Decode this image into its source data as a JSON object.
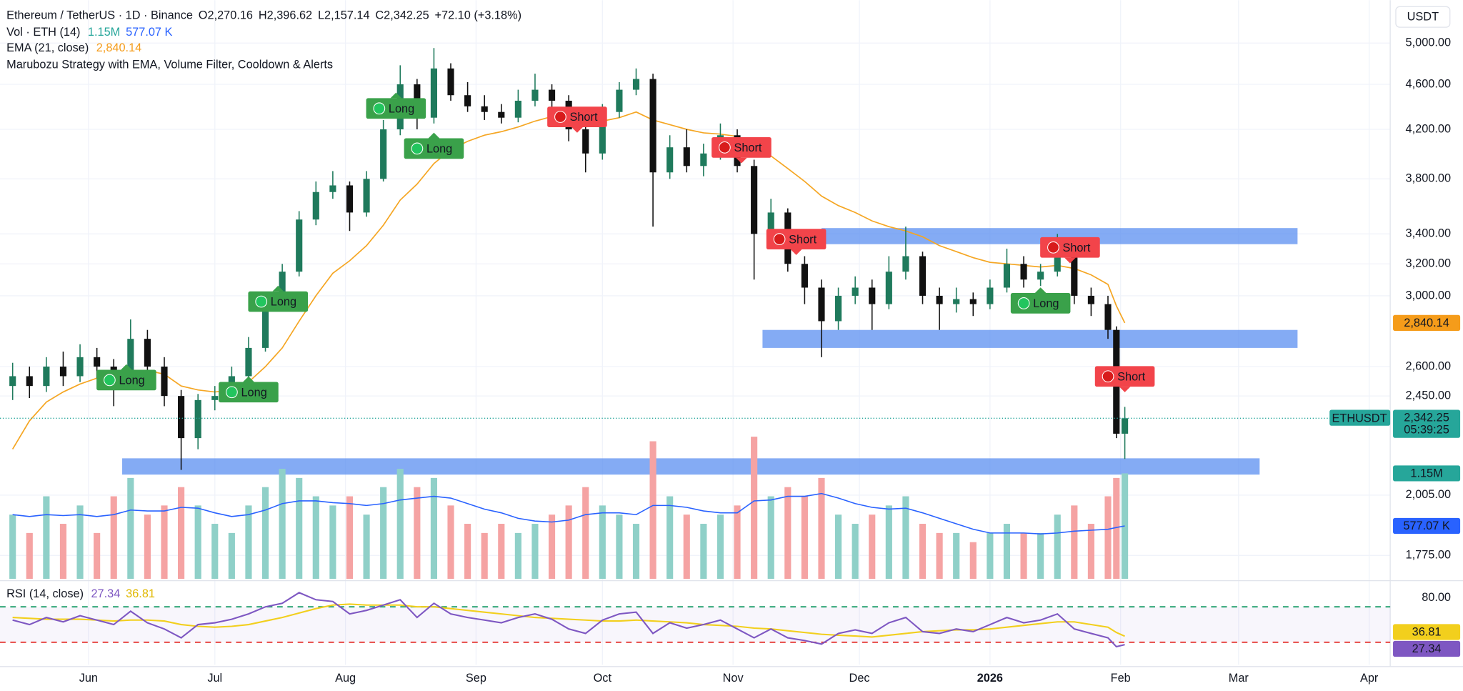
{
  "header": {
    "symbol": "Ethereum / TetherUS · 1D · Binance",
    "ohlc": [
      {
        "key": "O",
        "value": "2,270.16"
      },
      {
        "key": "H",
        "value": "2,396.62"
      },
      {
        "key": "L",
        "value": "2,157.14"
      },
      {
        "key": "C",
        "value": "2,342.25"
      }
    ],
    "change": "+72.10 (+3.18%)",
    "currency": "USDT"
  },
  "chart_data": {
    "type": "candlestick",
    "x": [
      3,
      7,
      11,
      15,
      19,
      23,
      27,
      31,
      35,
      39,
      43,
      47,
      51,
      55,
      59,
      63,
      67,
      71,
      75,
      79,
      83,
      87,
      91,
      95,
      99,
      103,
      107,
      111,
      115,
      119,
      123,
      127,
      131,
      135,
      139,
      143,
      147,
      151,
      155,
      159,
      163,
      167,
      171,
      175,
      179,
      183,
      187,
      191,
      195,
      199,
      203,
      207,
      211,
      215,
      219,
      223,
      227,
      231,
      235,
      239,
      243,
      247,
      251,
      255,
      259,
      263,
      265,
      267
    ],
    "open": [
      2500,
      2550,
      2500,
      2600,
      2550,
      2650,
      2600,
      2550,
      2750,
      2600,
      2450,
      2250,
      2430,
      2450,
      2550,
      2700,
      2980,
      3150,
      3500,
      3700,
      3750,
      3550,
      3800,
      4200,
      4600,
      4300,
      4750,
      4500,
      4400,
      4350,
      4300,
      4450,
      4550,
      4450,
      4200,
      4000,
      4350,
      4550,
      4650,
      3850,
      4050,
      3900,
      4000,
      4150,
      3900,
      3400,
      3550,
      3200,
      3050,
      2850,
      3000,
      3050,
      2950,
      3150,
      3250,
      3000,
      2950,
      2980,
      2950,
      3050,
      3200,
      3100,
      3150,
      3300,
      3000,
      2950,
      2800,
      2270.16
    ],
    "high": [
      2620,
      2600,
      2650,
      2680,
      2720,
      2700,
      2640,
      2860,
      2800,
      2650,
      2480,
      2460,
      2500,
      2600,
      2760,
      3020,
      3200,
      3560,
      3780,
      3860,
      3780,
      3860,
      4280,
      4780,
      4650,
      4950,
      4800,
      4620,
      4500,
      4420,
      4550,
      4700,
      4600,
      4500,
      4250,
      4420,
      4620,
      4750,
      4700,
      4150,
      4200,
      4080,
      4250,
      4200,
      3950,
      3650,
      3580,
      3250,
      3100,
      3050,
      3120,
      3100,
      3250,
      3450,
      3280,
      3050,
      3050,
      3020,
      3100,
      3300,
      3250,
      3200,
      3400,
      3320,
      3050,
      3000,
      2820,
      2396.62
    ],
    "low": [
      2430,
      2440,
      2470,
      2500,
      2520,
      2540,
      2400,
      2520,
      2540,
      2400,
      2110,
      2200,
      2380,
      2420,
      2520,
      2680,
      2940,
      3120,
      3460,
      3650,
      3420,
      3520,
      3780,
      4150,
      4200,
      4250,
      4450,
      4350,
      4280,
      4250,
      4260,
      4400,
      4380,
      4100,
      3850,
      3950,
      4300,
      4500,
      3450,
      3800,
      3850,
      3820,
      3950,
      3850,
      3100,
      3350,
      3150,
      2950,
      2650,
      2800,
      2950,
      2800,
      2920,
      3100,
      2950,
      2800,
      2900,
      2880,
      2920,
      3020,
      3050,
      3060,
      3120,
      2950,
      2880,
      2750,
      2250,
      2157.14
    ],
    "close": [
      2550,
      2500,
      2600,
      2550,
      2650,
      2600,
      2550,
      2750,
      2600,
      2450,
      2250,
      2430,
      2450,
      2550,
      2700,
      2980,
      3150,
      3500,
      3700,
      3750,
      3550,
      3800,
      4200,
      4600,
      4300,
      4750,
      4500,
      4400,
      4350,
      4300,
      4450,
      4550,
      4450,
      4200,
      4000,
      4350,
      4550,
      4650,
      3850,
      4050,
      3900,
      4000,
      4150,
      3900,
      3400,
      3550,
      3200,
      3050,
      2850,
      3000,
      3050,
      2950,
      3150,
      3250,
      3000,
      2950,
      2980,
      2950,
      3050,
      3200,
      3100,
      3150,
      3300,
      3000,
      2950,
      2800,
      2270.16,
      2342.25
    ],
    "up_color": "#1f7a5c",
    "down_color": "#111111",
    "xlim": [
      0,
      330
    ],
    "xticks": [
      {
        "value": 21,
        "label": "Jun"
      },
      {
        "value": 51,
        "label": "Jul"
      },
      {
        "value": 82,
        "label": "Aug"
      },
      {
        "value": 113,
        "label": "Sep"
      },
      {
        "value": 143,
        "label": "Oct"
      },
      {
        "value": 174,
        "label": "Nov"
      },
      {
        "value": 204,
        "label": "Dec"
      },
      {
        "value": 235,
        "label": "2026"
      },
      {
        "value": 266,
        "label": "Feb"
      },
      {
        "value": 294,
        "label": "Mar"
      },
      {
        "value": 325,
        "label": "Apr"
      }
    ],
    "ylim": [
      1693,
      5453
    ],
    "log": true,
    "grid": true,
    "yticks": [
      {
        "value": 5000,
        "label": "5,000.00"
      },
      {
        "value": 4600,
        "label": "4,600.00"
      },
      {
        "value": 4200,
        "label": "4,200.00"
      },
      {
        "value": 3800,
        "label": "3,800.00"
      },
      {
        "value": 3400,
        "label": "3,400.00"
      },
      {
        "value": 3200,
        "label": "3,200.00"
      },
      {
        "value": 3000,
        "label": "3,000.00"
      },
      {
        "value": 2600,
        "label": "2,600.00"
      },
      {
        "value": 2450,
        "label": "2,450.00"
      },
      {
        "value": 2005,
        "label": "2,005.00"
      },
      {
        "value": 1775,
        "label": "1,775.00"
      }
    ],
    "last_price": {
      "symbol": "ETHUSDT",
      "label": "2,342.25",
      "countdown": "05:39:25",
      "color": "#26a69a"
    },
    "ema": {
      "name": "EMA (21, close)",
      "color": "#f5a623",
      "last_label": "2,840.14",
      "values": [
        2200,
        2330,
        2420,
        2470,
        2510,
        2540,
        2545,
        2570,
        2580,
        2560,
        2500,
        2480,
        2470,
        2480,
        2520,
        2600,
        2700,
        2850,
        3000,
        3140,
        3220,
        3320,
        3460,
        3640,
        3760,
        3920,
        4030,
        4100,
        4150,
        4180,
        4220,
        4270,
        4310,
        4310,
        4270,
        4270,
        4300,
        4350,
        4280,
        4240,
        4200,
        4170,
        4160,
        4140,
        4050,
        3980,
        3880,
        3780,
        3670,
        3600,
        3550,
        3490,
        3450,
        3420,
        3380,
        3320,
        3280,
        3240,
        3210,
        3200,
        3190,
        3180,
        3190,
        3170,
        3130,
        3070,
        2940,
        2840.14
      ]
    },
    "volume": {
      "name": "Vol · ETH (14)",
      "up_color": "#8fd0c8",
      "down_color": "#f5a3a3",
      "vlim": [
        0,
        6.31
      ],
      "last_label": "1.15M",
      "values": [
        0.7,
        0.5,
        0.9,
        0.6,
        0.8,
        0.5,
        0.9,
        1.1,
        0.7,
        0.8,
        1.0,
        0.8,
        0.6,
        0.5,
        0.8,
        1.0,
        1.2,
        1.1,
        0.9,
        0.8,
        0.9,
        0.7,
        1.0,
        1.2,
        1.0,
        1.1,
        0.8,
        0.6,
        0.5,
        0.6,
        0.5,
        0.6,
        0.7,
        0.8,
        1.0,
        0.8,
        0.7,
        0.6,
        1.5,
        0.9,
        0.7,
        0.6,
        0.7,
        0.8,
        1.55,
        0.9,
        1.0,
        0.9,
        1.1,
        0.7,
        0.6,
        0.7,
        0.8,
        0.9,
        0.6,
        0.5,
        0.5,
        0.4,
        0.5,
        0.6,
        0.5,
        0.5,
        0.7,
        0.8,
        0.6,
        0.9,
        1.1,
        1.15
      ],
      "ma": {
        "color": "#2962ff",
        "last_label": "577.07 K",
        "values": [
          0.7,
          0.68,
          0.7,
          0.69,
          0.7,
          0.68,
          0.7,
          0.75,
          0.74,
          0.74,
          0.78,
          0.77,
          0.72,
          0.68,
          0.7,
          0.75,
          0.82,
          0.85,
          0.85,
          0.83,
          0.82,
          0.8,
          0.82,
          0.86,
          0.88,
          0.9,
          0.88,
          0.82,
          0.76,
          0.72,
          0.66,
          0.63,
          0.62,
          0.64,
          0.7,
          0.72,
          0.72,
          0.7,
          0.8,
          0.8,
          0.78,
          0.74,
          0.72,
          0.72,
          0.85,
          0.86,
          0.9,
          0.9,
          0.93,
          0.88,
          0.82,
          0.78,
          0.76,
          0.77,
          0.72,
          0.66,
          0.6,
          0.54,
          0.5,
          0.5,
          0.5,
          0.49,
          0.5,
          0.52,
          0.53,
          0.54,
          0.56,
          0.577
        ]
      }
    },
    "strategy": {
      "name": "Marubozu Strategy with EMA, Volume Filter, Cooldown & Alerts",
      "long_color": "#3aa14a",
      "short_color": "#f2444a",
      "signals": [
        {
          "label": "Long",
          "x": 30,
          "price": 2530
        },
        {
          "label": "Long",
          "x": 59,
          "price": 2469
        },
        {
          "label": "Long",
          "x": 66,
          "price": 2965
        },
        {
          "label": "Long",
          "x": 94,
          "price": 4381
        },
        {
          "label": "Long",
          "x": 103,
          "price": 4040
        },
        {
          "label": "Short",
          "x": 137,
          "price": 4307
        },
        {
          "label": "Short",
          "x": 176,
          "price": 4049
        },
        {
          "label": "Short",
          "x": 189,
          "price": 3364
        },
        {
          "label": "Long",
          "x": 247,
          "price": 2955
        },
        {
          "label": "Short",
          "x": 254,
          "price": 3308
        },
        {
          "label": "Short",
          "x": 267,
          "price": 2549
        }
      ]
    },
    "zones": {
      "color": "#5b8ff0",
      "items": [
        {
          "x": [
            195,
            308
          ],
          "price": [
            3330,
            3440
          ]
        },
        {
          "x": [
            181,
            308
          ],
          "price": [
            2700,
            2800
          ]
        },
        {
          "x": [
            29,
            299
          ],
          "price": [
            2090,
            2160
          ]
        }
      ]
    },
    "rsi": {
      "name": "RSI (14, close)",
      "color": "#7e57c2",
      "last_label": "27.34",
      "rlim": [
        4.7,
        96.3
      ],
      "rticks": [
        {
          "value": 80,
          "label": "80.00"
        }
      ],
      "bands": [
        {
          "value": 70,
          "color": "#1e9e6a"
        },
        {
          "value": 30,
          "color": "#e53935"
        }
      ],
      "values": [
        55,
        50,
        58,
        53,
        60,
        55,
        50,
        65,
        52,
        45,
        35,
        50,
        52,
        56,
        62,
        70,
        74,
        86,
        78,
        76,
        62,
        66,
        72,
        78,
        58,
        74,
        62,
        58,
        55,
        52,
        58,
        62,
        56,
        45,
        40,
        55,
        62,
        64,
        40,
        52,
        46,
        50,
        55,
        45,
        35,
        45,
        35,
        32,
        28,
        40,
        44,
        40,
        52,
        58,
        42,
        40,
        45,
        42,
        50,
        58,
        52,
        55,
        62,
        45,
        40,
        35,
        25,
        27.34
      ],
      "ma": {
        "color": "#f2cf1d",
        "last_label": "36.81",
        "values": [
          58,
          57,
          56,
          56,
          56,
          55,
          54,
          55,
          55,
          54,
          50,
          48,
          47,
          48,
          50,
          54,
          58,
          63,
          68,
          72,
          73,
          72,
          72,
          72,
          70,
          70,
          68,
          66,
          64,
          62,
          60,
          58,
          57,
          56,
          55,
          54,
          54,
          55,
          54,
          53,
          52,
          50,
          49,
          48,
          46,
          45,
          43,
          41,
          39,
          38,
          37,
          36,
          38,
          40,
          42,
          43,
          44,
          44,
          45,
          47,
          49,
          51,
          53,
          53,
          50,
          47,
          41,
          36.81
        ]
      }
    }
  }
}
